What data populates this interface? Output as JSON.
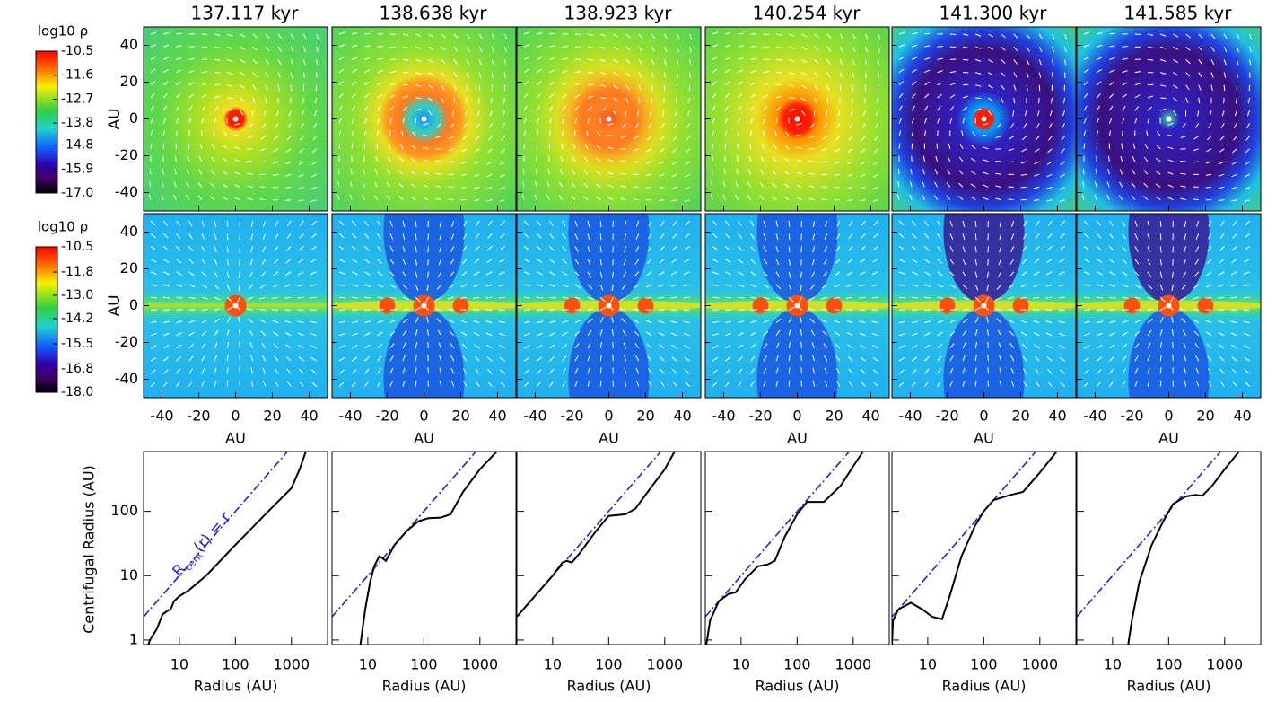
{
  "chart_data": [
    {
      "type": "colorbar",
      "label": "log10 ρ",
      "lim": [
        -17,
        -10.5
      ],
      "ticks": [
        -10.5,
        -11.6,
        -12.7,
        -13.8,
        -14.8,
        -15.9,
        {
          "value": -17,
          "label": "-17.0"
        }
      ]
    },
    {
      "type": "colorbar",
      "label": "log10 ρ",
      "lim": [
        -18,
        -10.5
      ],
      "ticks": [
        -10.5,
        -11.8,
        {
          "value": -13,
          "label": "-13.0"
        },
        -14.2,
        -15.5,
        -16.8,
        {
          "value": -18,
          "label": "-18.0"
        }
      ]
    },
    {
      "type": "maps",
      "titles": [
        "137.117 kyr",
        "138.638 kyr",
        "138.923 kyr",
        "140.254 kyr",
        "141.300 kyr",
        "141.585 kyr"
      ],
      "ylabel": "AU",
      "xlabel": "AU",
      "xlim": [
        -50,
        50
      ],
      "ylim": [
        -50,
        50
      ],
      "xticks": [
        -40,
        -20,
        0,
        20,
        40
      ],
      "yticks": [
        -40,
        -20,
        0,
        20,
        40
      ]
    },
    {
      "type": "line",
      "xlabel": "Radius (AU)",
      "ylabel": "Centrifugal Radius (AU)",
      "annotation": [
        "R",
        "cent",
        "(r) = r"
      ],
      "log": true,
      "color": "#000000",
      "reference_color": "#2a1fd0",
      "xlim": [
        2.3,
        4400
      ],
      "ylim": [
        0.85,
        850
      ],
      "xticks": [
        10,
        100,
        1000
      ],
      "yticks": [
        1,
        10,
        100
      ],
      "panels": [
        {
          "x": [
            2.8,
            3,
            4,
            5,
            6,
            7,
            8,
            10,
            15,
            30,
            100,
            300,
            1000,
            1400,
            1800
          ],
          "y": [
            0.85,
            1,
            1.5,
            2.5,
            2.8,
            3,
            4,
            4.8,
            6,
            10,
            30,
            80,
            230,
            450,
            850
          ]
        },
        {
          "x": [
            7.4,
            9,
            11,
            13,
            16,
            18,
            21,
            30,
            50,
            80,
            120,
            200,
            300,
            500,
            1000,
            2000
          ],
          "y": [
            0.85,
            3,
            8,
            14,
            20,
            19,
            17,
            30,
            50,
            70,
            78,
            80,
            90,
            200,
            450,
            850
          ]
        },
        {
          "x": [
            2.3,
            3,
            5,
            10,
            15,
            18,
            22,
            30,
            60,
            100,
            200,
            300,
            600,
            1000,
            1500
          ],
          "y": [
            2.3,
            3,
            5,
            10,
            16,
            17,
            16,
            22,
            50,
            85,
            90,
            110,
            250,
            450,
            850
          ]
        },
        {
          "x": [
            2.4,
            2.8,
            4,
            6,
            8,
            12,
            20,
            30,
            40,
            60,
            100,
            150,
            300,
            600,
            1000,
            1500
          ],
          "y": [
            0.85,
            2,
            4,
            5.2,
            5.5,
            9,
            14,
            15,
            17,
            40,
            90,
            140,
            140,
            250,
            500,
            850
          ]
        },
        {
          "x": [
            2.3,
            2.4,
            3,
            5,
            8,
            12,
            18,
            25,
            40,
            70,
            100,
            150,
            300,
            500,
            1000,
            2000
          ],
          "y": [
            0.85,
            2,
            3,
            3.8,
            3,
            2.3,
            2.1,
            5,
            20,
            60,
            100,
            150,
            180,
            200,
            400,
            850
          ]
        },
        {
          "x": [
            19,
            22,
            30,
            50,
            80,
            120,
            200,
            300,
            400,
            600,
            1000,
            1800
          ],
          "y": [
            0.85,
            2,
            8,
            30,
            70,
            130,
            170,
            180,
            175,
            250,
            450,
            850
          ]
        }
      ]
    }
  ]
}
